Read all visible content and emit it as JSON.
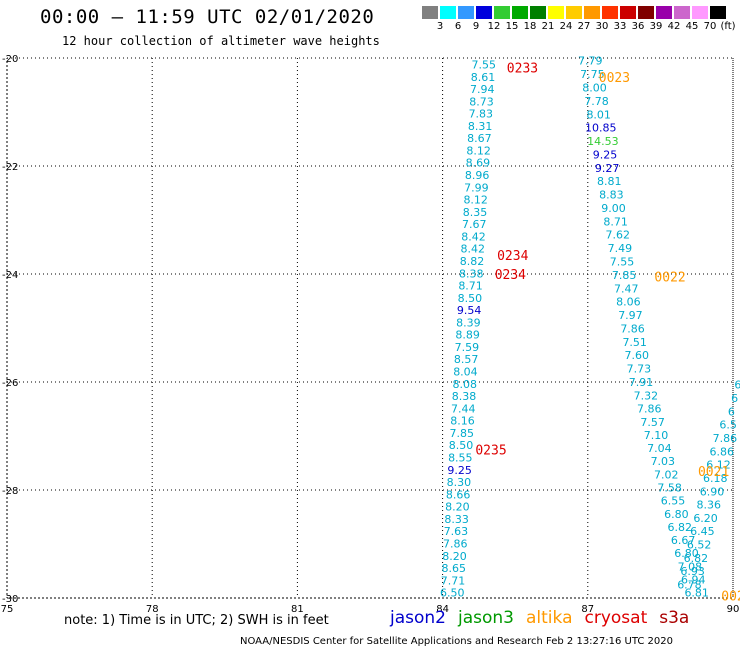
{
  "header": {
    "title": "00:00 – 11:59 UTC 02/01/2020",
    "subtitle": "12 hour collection of altimeter wave heights"
  },
  "color_scale": {
    "labels": [
      "3",
      "6",
      "9",
      "12",
      "15",
      "18",
      "21",
      "24",
      "27",
      "30",
      "33",
      "36",
      "39",
      "42",
      "45",
      "70",
      "(ft)"
    ],
    "colors": [
      "#808080",
      "#00ffff",
      "#3399ff",
      "#0000dd",
      "#33cc33",
      "#00aa00",
      "#008000",
      "#ffff00",
      "#ffcc00",
      "#ff9900",
      "#ff3300",
      "#cc0000",
      "#800000",
      "#9900aa",
      "#cc66cc",
      "#ff99ff",
      "#000000"
    ]
  },
  "footer": {
    "note": "note:  1) Time is in UTC;  2) SWH is in feet",
    "legend": [
      {
        "name": "jason2",
        "color": "#0000cc"
      },
      {
        "name": "jason3",
        "color": "#009900"
      },
      {
        "name": "altika",
        "color": "#ff9900"
      },
      {
        "name": "cryosat",
        "color": "#dd0000"
      },
      {
        "name": "s3a",
        "color": "#aa0000"
      }
    ],
    "credit": "NOAA/NESDIS Center for Satellite Applications and Research    Feb  2 13:27:16 UTC 2020"
  },
  "chart_data": {
    "type": "scatter",
    "xlim": [
      75,
      90
    ],
    "ylim": [
      -30,
      -20
    ],
    "x_ticks": [
      75,
      78,
      81,
      84,
      87,
      90
    ],
    "y_ticks": [
      -20,
      -22,
      -24,
      -26,
      -28,
      -30
    ],
    "x_tick_labels": [
      "75",
      "78",
      "81",
      "84",
      "87",
      "90"
    ],
    "y_tick_labels": [
      "-20",
      "-22",
      "-24",
      "-26",
      "-28",
      "-30"
    ],
    "grid": true,
    "value_color": "#00aacc",
    "tracks": [
      {
        "x0": 84.85,
        "y0": -20.12,
        "x1": 84.2,
        "y1": -29.9,
        "values": [
          "7.55",
          "8.61",
          "7.94",
          "8.73",
          "7.83",
          "8.31",
          "8.67",
          "8.12",
          "8.69",
          "8.96",
          "7.99",
          "8.12",
          "8.35",
          "7.67",
          "8.42",
          "8.42",
          "8.82",
          "8.38",
          "8.71",
          "8.50",
          "9.54",
          "8.39",
          "8.89",
          "7.59",
          "8.57",
          "8.04",
          "8.08",
          "8.38",
          "7.44",
          "8.16",
          "7.85",
          "8.50",
          "8.55",
          "9.25",
          "8.30",
          "8.66",
          "8.20",
          "8.33",
          "7.63",
          "7.86",
          "8.20",
          "8.65",
          "7.71",
          "6.50"
        ]
      },
      {
        "x0": 87.05,
        "y0": -20.05,
        "x1": 88.1,
        "y1": -26.0,
        "values": [
          "7.79",
          "7.75",
          "8.00",
          "7.78",
          "8.01",
          "10.85",
          "14.53",
          "9.25",
          "9.27",
          "8.81",
          "8.83",
          "9.00",
          "8.71",
          "7.62",
          "7.49",
          "7.55",
          "7.85",
          "7.47",
          "8.06",
          "7.97",
          "7.86",
          "7.51",
          "7.60",
          "7.73",
          "7.91"
        ]
      },
      {
        "x0": 88.2,
        "y0": -26.25,
        "x1": 89.25,
        "y1": -29.9,
        "values": [
          "7.32",
          "7.86",
          "7.57",
          "7.10",
          "7.04",
          "7.03",
          "7.02",
          "7.58",
          "6.55",
          "6.80",
          "6.82",
          "6.67",
          "6.80",
          "7.08",
          "6.94",
          "6.81"
        ]
      },
      {
        "x0": 90.1,
        "y0": -26.05,
        "x1": 89.1,
        "y1": -29.75,
        "values": [
          "6",
          "6",
          "6",
          "6.5",
          "7.86",
          "6.86",
          "6.12",
          "6.18",
          "6.90",
          "8.36",
          "6.20",
          "6.45",
          "6.52",
          "6.82",
          "6.93",
          "6.78"
        ]
      }
    ],
    "special_colors": {
      "9.54": "#0000cc",
      "9.25": "#0000cc",
      "10.85": "#0000cc",
      "14.53": "#33cc33",
      "9.27": "#0000cc"
    },
    "time_labels": [
      {
        "text": "0233",
        "x": 85.65,
        "y": -20.18,
        "color": "#dd0000"
      },
      {
        "text": "0023",
        "x": 87.55,
        "y": -20.35,
        "color": "#ff9900"
      },
      {
        "text": "0234",
        "x": 85.45,
        "y": -23.65,
        "color": "#dd0000"
      },
      {
        "text": "0234",
        "x": 85.4,
        "y": -24.0,
        "color": "#dd0000"
      },
      {
        "text": "0022",
        "x": 88.7,
        "y": -24.05,
        "color": "#ff9900"
      },
      {
        "text": "0235",
        "x": 85.0,
        "y": -27.25,
        "color": "#dd0000"
      },
      {
        "text": "0021",
        "x": 89.6,
        "y": -27.65,
        "color": "#ff9900"
      },
      {
        "text": "002",
        "x": 90.0,
        "y": -29.95,
        "color": "#ff9900"
      }
    ]
  }
}
